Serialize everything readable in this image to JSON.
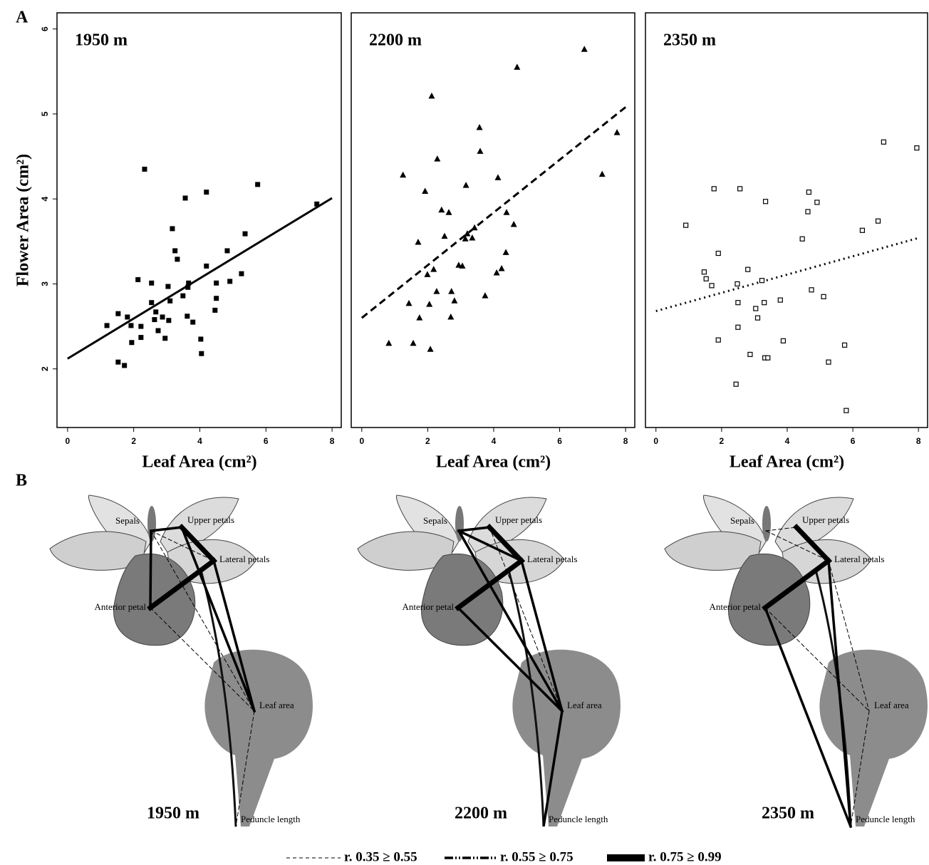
{
  "chart_data": [
    {
      "type": "scatter",
      "title": "1950 m",
      "xlabel": "Leaf Area (cm²)",
      "ylabel": "Flower Area (cm²)",
      "marker": "square",
      "x": [
        1.19,
        1.53,
        1.81,
        1.92,
        1.94,
        2.22,
        2.22,
        2.13,
        2.33,
        1.53,
        1.72,
        2.54,
        2.54,
        2.63,
        2.67,
        2.74,
        2.87,
        2.95,
        3.04,
        3.06,
        3.1,
        3.17,
        3.25,
        3.32,
        3.49,
        3.56,
        3.62,
        3.64,
        3.66,
        3.79,
        4.03,
        4.05,
        4.2,
        4.2,
        4.46,
        4.5,
        4.5,
        4.83,
        4.91,
        5.26,
        5.37,
        5.75,
        7.54
      ],
      "values": [
        2.51,
        2.65,
        2.61,
        2.51,
        2.31,
        2.5,
        2.37,
        3.05,
        4.35,
        2.08,
        2.04,
        2.78,
        3.01,
        2.58,
        2.67,
        2.45,
        2.61,
        2.36,
        2.97,
        2.57,
        2.8,
        3.65,
        3.39,
        3.29,
        2.86,
        4.01,
        2.62,
        2.96,
        3.01,
        2.55,
        2.35,
        2.18,
        3.21,
        4.08,
        2.69,
        2.83,
        3.01,
        3.39,
        3.03,
        3.12,
        3.59,
        4.17,
        3.94
      ],
      "fit": {
        "x": [
          0,
          8
        ],
        "values": [
          2.12,
          4.01
        ],
        "line_style": "solid"
      },
      "xlim": [
        -0.32,
        8.3
      ],
      "ylim": [
        1.31,
        6.19
      ],
      "xticks": [
        0,
        2,
        4,
        6,
        8
      ],
      "yticks": [
        2,
        3,
        4,
        5,
        6
      ]
    },
    {
      "type": "scatter",
      "title": "2200 m",
      "xlabel": "Leaf Area (cm²)",
      "marker": "triangle",
      "x": [
        0.82,
        1.25,
        1.43,
        1.56,
        1.71,
        1.75,
        1.92,
        1.99,
        2.05,
        2.08,
        2.12,
        2.18,
        2.27,
        2.29,
        2.42,
        2.51,
        2.64,
        2.7,
        2.72,
        2.81,
        2.94,
        3.05,
        3.16,
        3.14,
        3.2,
        3.35,
        3.42,
        3.57,
        3.59,
        3.74,
        4.09,
        4.13,
        4.24,
        4.37,
        4.39,
        4.61,
        4.71,
        6.75,
        7.29,
        7.74
      ],
      "values": [
        2.3,
        4.28,
        2.77,
        2.3,
        3.49,
        2.6,
        4.09,
        3.11,
        2.76,
        2.23,
        5.21,
        3.17,
        2.91,
        4.47,
        3.87,
        3.56,
        3.84,
        2.61,
        2.91,
        2.8,
        3.22,
        3.21,
        4.16,
        3.53,
        3.59,
        3.54,
        3.66,
        4.84,
        4.56,
        2.86,
        3.13,
        4.25,
        3.18,
        3.37,
        3.84,
        3.7,
        5.55,
        5.76,
        4.29,
        4.78
      ],
      "fit": {
        "x": [
          0,
          8
        ],
        "values": [
          2.6,
          5.08
        ],
        "line_style": "dashed"
      },
      "xlim": [
        -0.32,
        8.3
      ],
      "ylim": [
        1.31,
        6.19
      ],
      "xticks": [
        0,
        2,
        4,
        6,
        8
      ]
    },
    {
      "type": "scatter",
      "title": "2350 m",
      "xlabel": "Leaf Area (cm²)",
      "marker": "open-square",
      "x": [
        0.91,
        1.47,
        1.53,
        1.7,
        1.77,
        1.9,
        1.9,
        2.44,
        2.48,
        2.5,
        2.5,
        2.56,
        2.8,
        2.87,
        3.04,
        3.1,
        3.23,
        3.3,
        3.32,
        3.41,
        3.34,
        3.79,
        3.88,
        4.46,
        4.63,
        4.66,
        4.74,
        4.91,
        5.11,
        5.26,
        5.75,
        5.8,
        6.29,
        6.77,
        6.94,
        7.95
      ],
      "values": [
        3.69,
        3.14,
        3.06,
        2.98,
        4.12,
        3.36,
        2.34,
        1.82,
        3.0,
        2.49,
        2.78,
        4.12,
        3.17,
        2.17,
        2.71,
        2.6,
        3.04,
        2.78,
        2.13,
        2.13,
        3.97,
        2.81,
        2.33,
        3.53,
        3.85,
        4.08,
        2.93,
        3.96,
        2.85,
        2.08,
        2.28,
        1.51,
        3.63,
        3.74,
        4.67,
        4.6
      ],
      "fit": {
        "x": [
          0,
          8
        ],
        "values": [
          2.68,
          3.54
        ],
        "line_style": "dotted"
      },
      "xlim": [
        -0.32,
        8.3
      ],
      "ylim": [
        1.31,
        6.19
      ],
      "xticks": [
        0,
        2,
        4,
        6,
        8
      ]
    }
  ],
  "panel_labels": [
    "A",
    "B"
  ],
  "diagram": {
    "node_labels": [
      "Sepals",
      "Upper petals",
      "Lateral petals",
      "Anterior petal",
      "Leaf area",
      "Peduncle length"
    ],
    "altitudes": [
      "1950 m",
      "2200 m",
      "2350 m"
    ]
  },
  "legend": [
    "r. 0.35 ≥ 0.55",
    "r. 0.55 ≥ 0.75",
    "r. 0.75 ≥ 0.99"
  ]
}
